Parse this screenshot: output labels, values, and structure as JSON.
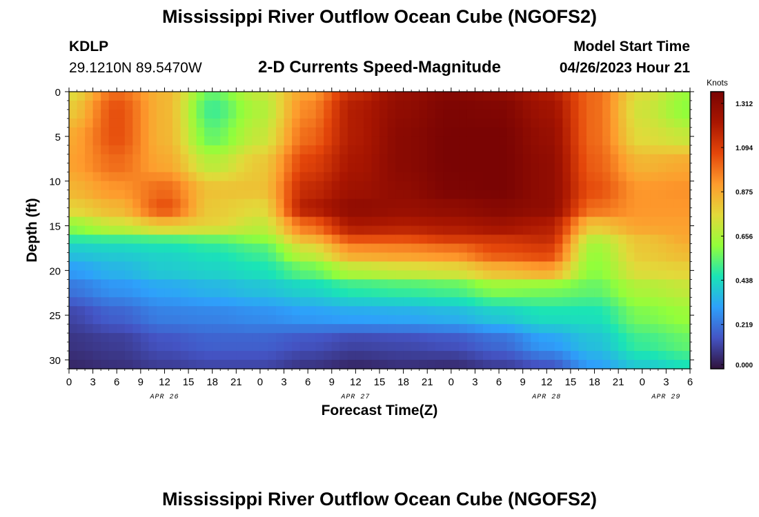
{
  "titles": {
    "main": "Mississippi River Outflow Ocean Cube (NGOFS2)",
    "bottom": "Mississippi River Outflow Ocean Cube (NGOFS2)"
  },
  "station": {
    "id": "KDLP",
    "coords": "29.1210N  89.5470W"
  },
  "model": {
    "start_label": "Model Start Time",
    "start_value": "04/26/2023 Hour 21"
  },
  "chart_data": {
    "type": "heatmap",
    "title": "2-D Currents Speed-Magnitude",
    "xlabel": "Forecast Time(Z)",
    "ylabel": "Depth (ft)",
    "x_range_hours": [
      0,
      78
    ],
    "y_range_ft": [
      0,
      31
    ],
    "y_inverted": true,
    "yticks": [
      0,
      5,
      10,
      15,
      20,
      25,
      30
    ],
    "xtick_labels": [
      "0",
      "3",
      "6",
      "9",
      "12",
      "15",
      "18",
      "21",
      "0",
      "3",
      "6",
      "9",
      "12",
      "15",
      "18",
      "21",
      "0",
      "3",
      "6",
      "9",
      "12",
      "15",
      "18",
      "21",
      "0",
      "3",
      "6"
    ],
    "date_labels": [
      {
        "label": "APR 26",
        "hour": 12
      },
      {
        "label": "APR 27",
        "hour": 36
      },
      {
        "label": "APR 28",
        "hour": 60
      },
      {
        "label": "APR 29",
        "hour": 75
      }
    ],
    "colorbar": {
      "unit": "Knots",
      "min": 0.0,
      "max": 1.37,
      "ticks": [
        "1.312",
        "1.094",
        "0.875",
        "0.656",
        "0.438",
        "0.219",
        "0.000"
      ],
      "tick_values": [
        1.312,
        1.094,
        0.875,
        0.656,
        0.438,
        0.219,
        0.0
      ],
      "colors": [
        "#30123b",
        "#4454c4",
        "#2ea0fb",
        "#1ae4b6",
        "#93fe3a",
        "#e3d93a",
        "#fe9b2d",
        "#e4460a",
        "#a91601",
        "#7a0403"
      ]
    },
    "grid_hours": [
      0,
      6,
      12,
      18,
      24,
      30,
      36,
      42,
      48,
      54,
      60,
      66,
      72,
      78
    ],
    "grid_depths": [
      0,
      2,
      5,
      8,
      11,
      13,
      15,
      16.5,
      18,
      20,
      22,
      25,
      28,
      31
    ],
    "values": [
      [
        0.75,
        1.0,
        0.85,
        0.55,
        0.7,
        0.9,
        1.15,
        1.28,
        1.33,
        1.3,
        1.2,
        1.0,
        0.75,
        0.62
      ],
      [
        0.8,
        1.05,
        0.85,
        0.5,
        0.66,
        0.95,
        1.2,
        1.3,
        1.36,
        1.35,
        1.25,
        1.0,
        0.72,
        0.6
      ],
      [
        0.88,
        1.05,
        0.85,
        0.55,
        0.7,
        1.0,
        1.2,
        1.32,
        1.37,
        1.37,
        1.28,
        1.0,
        0.75,
        0.7
      ],
      [
        0.9,
        1.0,
        0.88,
        0.68,
        0.8,
        1.08,
        1.22,
        1.32,
        1.37,
        1.37,
        1.3,
        1.02,
        0.85,
        0.88
      ],
      [
        0.85,
        0.92,
        1.0,
        0.82,
        0.82,
        1.15,
        1.25,
        1.3,
        1.36,
        1.37,
        1.3,
        1.05,
        0.92,
        0.93
      ],
      [
        0.78,
        0.85,
        1.05,
        0.8,
        0.76,
        1.2,
        1.3,
        1.28,
        1.3,
        1.33,
        1.3,
        1.0,
        0.92,
        0.92
      ],
      [
        0.62,
        0.72,
        0.82,
        0.78,
        0.7,
        1.0,
        1.22,
        1.2,
        1.22,
        1.25,
        1.2,
        0.82,
        0.9,
        0.9
      ],
      [
        0.48,
        0.5,
        0.52,
        0.55,
        0.6,
        0.85,
        1.05,
        1.05,
        1.1,
        1.12,
        1.15,
        0.68,
        0.82,
        0.88
      ],
      [
        0.38,
        0.4,
        0.42,
        0.45,
        0.5,
        0.7,
        0.9,
        0.92,
        0.95,
        1.05,
        1.08,
        0.62,
        0.8,
        0.84
      ],
      [
        0.3,
        0.35,
        0.4,
        0.42,
        0.45,
        0.55,
        0.68,
        0.72,
        0.75,
        0.85,
        0.9,
        0.6,
        0.76,
        0.78
      ],
      [
        0.22,
        0.28,
        0.32,
        0.35,
        0.38,
        0.42,
        0.48,
        0.5,
        0.52,
        0.6,
        0.58,
        0.55,
        0.66,
        0.7
      ],
      [
        0.12,
        0.18,
        0.24,
        0.25,
        0.27,
        0.3,
        0.32,
        0.33,
        0.35,
        0.4,
        0.45,
        0.45,
        0.58,
        0.62
      ],
      [
        0.08,
        0.1,
        0.15,
        0.18,
        0.18,
        0.15,
        0.12,
        0.13,
        0.15,
        0.2,
        0.3,
        0.38,
        0.5,
        0.55
      ],
      [
        0.05,
        0.07,
        0.1,
        0.12,
        0.12,
        0.08,
        0.05,
        0.07,
        0.06,
        0.1,
        0.15,
        0.3,
        0.4,
        0.45
      ]
    ]
  }
}
